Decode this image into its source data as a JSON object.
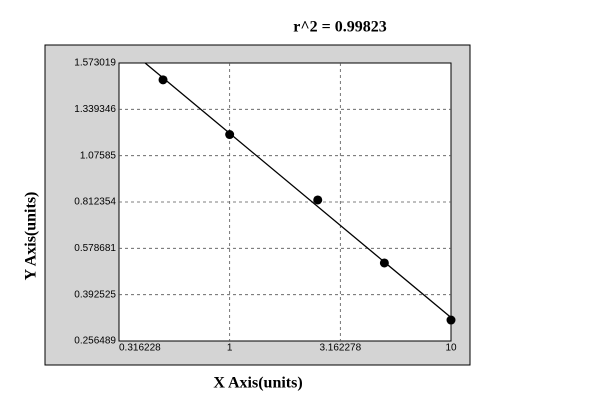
{
  "chart_data": {
    "type": "scatter",
    "title": "r^2  =  0.99823",
    "x_label": "X Axis(units)",
    "y_label": "Y Axis(units)",
    "x_scale": "log",
    "grid": true,
    "fit_line": true,
    "color": "#000000",
    "x": [
      0.5,
      1,
      2.5,
      5,
      10
    ],
    "values": [
      1.488,
      1.196,
      0.824,
      0.52,
      0.318
    ],
    "xlim": [
      0.316228,
      10
    ],
    "xticks": [
      0.316228,
      1,
      3.162278,
      10
    ],
    "ylim": [
      0.256489,
      1.573019
    ],
    "yticks": [
      0.256489,
      0.392525,
      0.578681,
      0.812354,
      1.07585,
      1.339346,
      1.573019
    ]
  }
}
